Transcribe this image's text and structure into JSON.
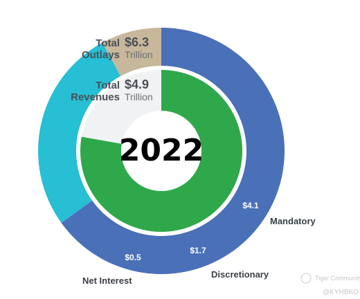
{
  "chart_data": {
    "type": "pie",
    "year": "2022",
    "totals": {
      "outlays": {
        "label_line1": "Total",
        "label_line2": "Outlays",
        "value": "$6.3",
        "unit": "Trillion",
        "amount": 6.3
      },
      "revenues": {
        "label_line1": "Total",
        "label_line2": "Revenues",
        "value": "$4.9",
        "unit": "Trillion",
        "amount": 4.9
      }
    },
    "outer_ring": [
      {
        "name": "Mandatory",
        "value": 4.1,
        "label": "$4.1",
        "color": "#4a70b8"
      },
      {
        "name": "Discretionary",
        "value": 1.7,
        "label": "$1.7",
        "color": "#26bfd4"
      },
      {
        "name": "Net Interest",
        "value": 0.5,
        "label": "$0.5",
        "color": "#c7b79b"
      }
    ],
    "inner_ring": [
      {
        "name": "Revenues",
        "value": 4.9,
        "color": "#2ea84a"
      }
    ],
    "track_color": "#f1f2f3"
  },
  "watermark": {
    "brand": "Tiger Community",
    "handle": "@KYHBKO"
  }
}
